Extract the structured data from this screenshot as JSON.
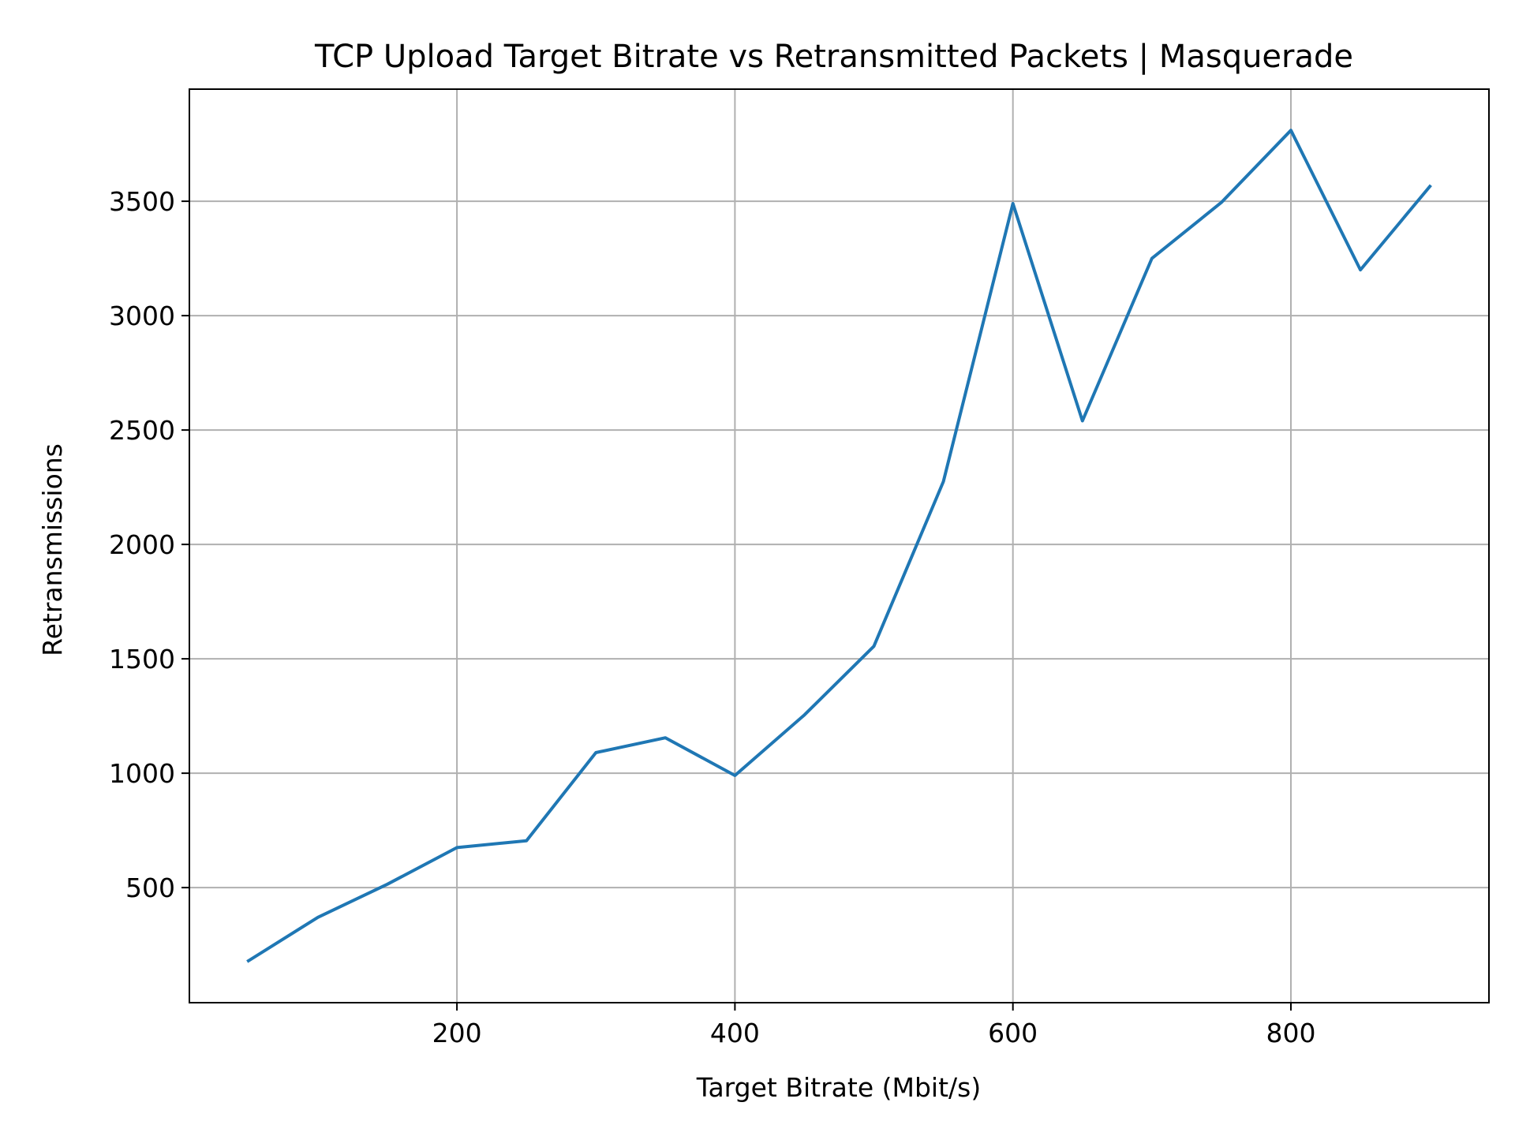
{
  "chart_data": {
    "type": "line",
    "title": "TCP Upload Target Bitrate vs Retransmitted Packets | Masquerade",
    "xlabel": "Target Bitrate (Mbit/s)",
    "ylabel": "Retransmissions",
    "xlim": [
      7.5,
      942.5
    ],
    "ylim": [
      -3,
      3990
    ],
    "xticks": [
      200,
      400,
      600,
      800
    ],
    "yticks": [
      500,
      1000,
      1500,
      2000,
      2500,
      3000,
      3500
    ],
    "grid": true,
    "legend": "none",
    "series": [
      {
        "color": "#1f77b4",
        "x": [
          50,
          100,
          150,
          200,
          250,
          300,
          350,
          400,
          450,
          500,
          550,
          600,
          650,
          700,
          750,
          800,
          850,
          900
        ],
        "y": [
          180,
          370,
          515,
          675,
          705,
          1090,
          1155,
          990,
          1255,
          1555,
          2275,
          3490,
          2540,
          3250,
          3495,
          3810,
          3200,
          3565
        ]
      }
    ]
  }
}
